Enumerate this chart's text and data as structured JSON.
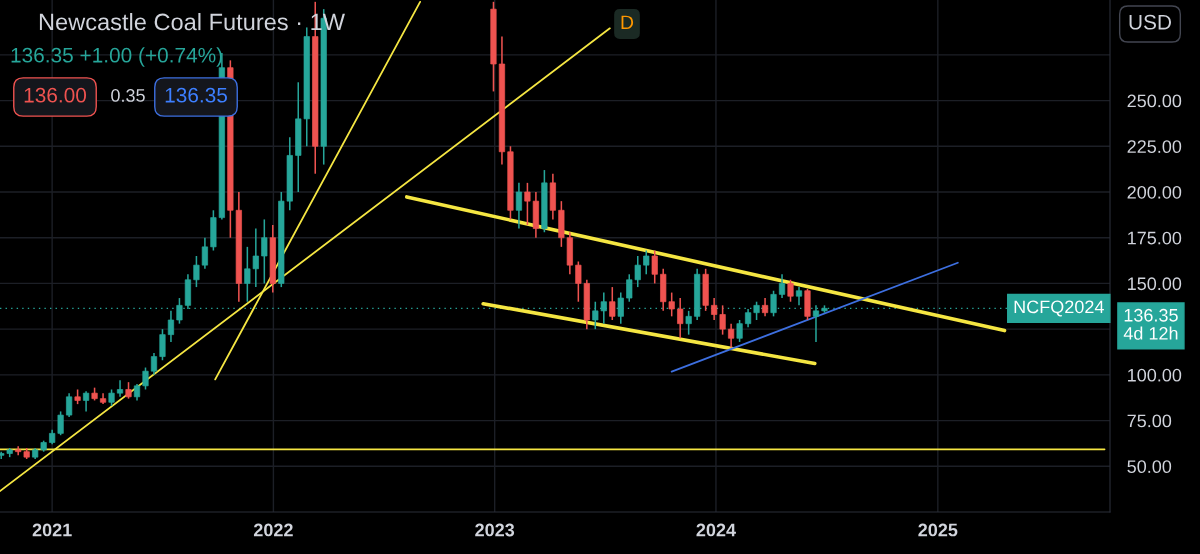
{
  "chart_data": {
    "type": "candlestick",
    "title": "Newcastle Coal Futures · 1W",
    "x": [
      "2020-10-09",
      "2020-10-23",
      "2020-11-06",
      "2020-11-20",
      "2020-12-04",
      "2020-12-18",
      "2021-01-01",
      "2021-01-15",
      "2021-01-29",
      "2021-02-12",
      "2021-02-26",
      "2021-03-12",
      "2021-03-26",
      "2021-04-09",
      "2021-04-23",
      "2021-05-07",
      "2021-05-21",
      "2021-06-04",
      "2021-06-18",
      "2021-07-02",
      "2021-07-16",
      "2021-07-30",
      "2021-08-13",
      "2021-08-27",
      "2021-09-10",
      "2021-09-24",
      "2021-10-08",
      "2021-10-22",
      "2021-11-05",
      "2021-11-19",
      "2021-12-03",
      "2021-12-17",
      "2021-12-31",
      "2022-01-14",
      "2022-01-28",
      "2022-02-11",
      "2022-02-25",
      "2022-03-11",
      "2022-03-25",
      "2022-12-30",
      "2023-01-13",
      "2023-01-27",
      "2023-02-10",
      "2023-02-24",
      "2023-03-10",
      "2023-03-24",
      "2023-04-07",
      "2023-04-21",
      "2023-05-05",
      "2023-05-19",
      "2023-06-02",
      "2023-06-16",
      "2023-06-30",
      "2023-07-14",
      "2023-07-28",
      "2023-08-11",
      "2023-08-25",
      "2023-09-08",
      "2023-09-22",
      "2023-10-06",
      "2023-10-20",
      "2023-11-03",
      "2023-11-17",
      "2023-12-01",
      "2023-12-15",
      "2023-12-29",
      "2024-01-12",
      "2024-01-26",
      "2024-02-09",
      "2024-02-23",
      "2024-03-08",
      "2024-03-22",
      "2024-04-05",
      "2024-04-19",
      "2024-05-03",
      "2024-05-17",
      "2024-05-31",
      "2024-06-14",
      "2024-06-28"
    ],
    "ohlc": [
      [
        56,
        58,
        54,
        57
      ],
      [
        57,
        60,
        55,
        59
      ],
      [
        59,
        61,
        56,
        58
      ],
      [
        58,
        60,
        54,
        55
      ],
      [
        55,
        60,
        54,
        59
      ],
      [
        59,
        64,
        58,
        63
      ],
      [
        63,
        70,
        62,
        68
      ],
      [
        68,
        80,
        67,
        78
      ],
      [
        78,
        90,
        77,
        88
      ],
      [
        88,
        92,
        84,
        86
      ],
      [
        86,
        91,
        80,
        90
      ],
      [
        90,
        93,
        86,
        87
      ],
      [
        87,
        90,
        84,
        85
      ],
      [
        85,
        92,
        83,
        90
      ],
      [
        90,
        97,
        88,
        92
      ],
      [
        92,
        96,
        87,
        88
      ],
      [
        88,
        95,
        86,
        94
      ],
      [
        94,
        104,
        92,
        102
      ],
      [
        102,
        112,
        100,
        110
      ],
      [
        110,
        125,
        108,
        122
      ],
      [
        122,
        135,
        118,
        130
      ],
      [
        130,
        142,
        128,
        138
      ],
      [
        138,
        155,
        136,
        152
      ],
      [
        152,
        165,
        148,
        160
      ],
      [
        160,
        175,
        158,
        170
      ],
      [
        170,
        190,
        168,
        186
      ],
      [
        186,
        276,
        185,
        268
      ],
      [
        268,
        272,
        175,
        190
      ],
      [
        190,
        200,
        140,
        150
      ],
      [
        150,
        170,
        140,
        158
      ],
      [
        158,
        180,
        148,
        165
      ],
      [
        165,
        185,
        150,
        175
      ],
      [
        175,
        182,
        145,
        150
      ],
      [
        150,
        200,
        148,
        195
      ],
      [
        195,
        230,
        190,
        220
      ],
      [
        220,
        260,
        200,
        240
      ],
      [
        240,
        290,
        225,
        285
      ],
      [
        285,
        304,
        210,
        225
      ],
      [
        225,
        300,
        215,
        295
      ],
      [
        300,
        304,
        255,
        270
      ],
      [
        270,
        285,
        215,
        222
      ],
      [
        222,
        225,
        185,
        190
      ],
      [
        190,
        205,
        180,
        200
      ],
      [
        200,
        205,
        182,
        195
      ],
      [
        195,
        200,
        175,
        180
      ],
      [
        180,
        212,
        178,
        205
      ],
      [
        205,
        210,
        185,
        190
      ],
      [
        190,
        195,
        170,
        175
      ],
      [
        175,
        178,
        155,
        160
      ],
      [
        160,
        162,
        140,
        150
      ],
      [
        150,
        152,
        125,
        130
      ],
      [
        130,
        140,
        125,
        135
      ],
      [
        135,
        145,
        128,
        140
      ],
      [
        140,
        148,
        130,
        132
      ],
      [
        132,
        145,
        128,
        142
      ],
      [
        142,
        155,
        140,
        152
      ],
      [
        152,
        165,
        148,
        160
      ],
      [
        160,
        168,
        155,
        165
      ],
      [
        165,
        168,
        150,
        155
      ],
      [
        155,
        158,
        135,
        140
      ],
      [
        140,
        145,
        132,
        136
      ],
      [
        136,
        142,
        120,
        128
      ],
      [
        128,
        135,
        122,
        132
      ],
      [
        132,
        158,
        130,
        155
      ],
      [
        155,
        158,
        135,
        138
      ],
      [
        138,
        142,
        130,
        133
      ],
      [
        133,
        138,
        122,
        125
      ],
      [
        125,
        128,
        115,
        120
      ],
      [
        120,
        130,
        118,
        128
      ],
      [
        128,
        136,
        126,
        134
      ],
      [
        134,
        140,
        130,
        138
      ],
      [
        138,
        142,
        132,
        134
      ],
      [
        134,
        146,
        132,
        144
      ],
      [
        144,
        155,
        142,
        150
      ],
      [
        150,
        152,
        140,
        143
      ],
      [
        143,
        148,
        138,
        146
      ],
      [
        146,
        147,
        130,
        132
      ],
      [
        132,
        138,
        118,
        135
      ],
      [
        135,
        138,
        134,
        136.35
      ]
    ],
    "series": [
      {
        "type": "line",
        "color": "#f5e642",
        "x": [
          "2020-10-07",
          "2023-07-10"
        ],
        "values": [
          36.4,
          289.5
        ]
      },
      {
        "type": "line",
        "color": "#f5e642",
        "x": [
          "2021-09-27",
          "2022-08-31"
        ],
        "values": [
          97.5,
          304
        ]
      },
      {
        "type": "line",
        "color": "#f5e642",
        "x": [
          "2022-08-09",
          "2025-04-21"
        ],
        "values": [
          197.3,
          124.2
        ]
      },
      {
        "type": "line",
        "color": "#f5e642",
        "x": [
          "2022-12-13",
          "2024-06-12"
        ],
        "values": [
          138.9,
          106.2
        ]
      },
      {
        "type": "line",
        "color": "#3d6fe0",
        "x": [
          "2023-10-20",
          "2025-02-03"
        ],
        "values": [
          101.8,
          161.3
        ]
      },
      {
        "type": "line",
        "color": "#f5e642",
        "x": [
          "2020-10-07",
          "2025-10-03"
        ],
        "values": [
          59.3,
          59.3
        ]
      }
    ],
    "xlim": [
      "2020-10-07",
      "2025-10-12"
    ],
    "xticks": [
      {
        "value": "2021-01-01",
        "label": "2021"
      },
      {
        "value": "2022-01-01",
        "label": "2022"
      },
      {
        "value": "2023-01-01",
        "label": "2023"
      },
      {
        "value": "2024-01-01",
        "label": "2024"
      },
      {
        "value": "2025-01-01",
        "label": "2025"
      }
    ],
    "ylim": [
      25,
      305
    ],
    "yticks": [
      {
        "value": 50,
        "label": "50.00"
      },
      {
        "value": 75,
        "label": "75.00"
      },
      {
        "value": 100,
        "label": "100.00"
      },
      {
        "value": 125,
        "label": null
      },
      {
        "value": 150,
        "label": "150.00"
      },
      {
        "value": 175,
        "label": "175.00"
      },
      {
        "value": 200,
        "label": "200.00"
      },
      {
        "value": 225,
        "label": "225.00"
      },
      {
        "value": 250,
        "label": "250.00"
      },
      {
        "value": 275,
        "label": null
      }
    ],
    "ref_lines": [
      {
        "axis": "y",
        "value": 136.35,
        "label": "NCFQ2024",
        "color": "#26a69a",
        "line_style": "dotted"
      }
    ],
    "annotations": [
      "136.35 +1.00 (+0.74%)",
      "136.00",
      "0.35",
      "136.35",
      "D",
      "USD",
      "136.35\n4d 12h"
    ],
    "grid": true,
    "legend": false
  }
}
